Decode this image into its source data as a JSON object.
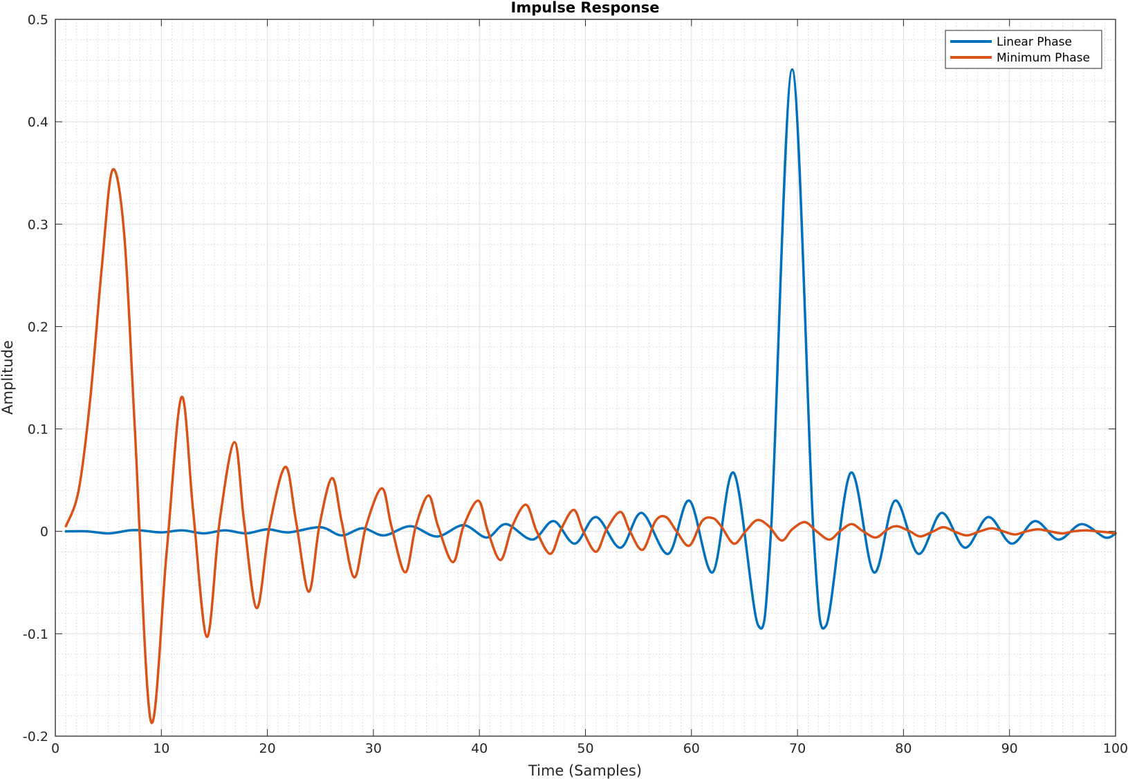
{
  "chart_data": {
    "type": "line",
    "title": "Impulse Response",
    "xlabel": "Time (Samples)",
    "ylabel": "Amplitude",
    "xlim": [
      0,
      100
    ],
    "ylim": [
      -0.2,
      0.5
    ],
    "xticks": [
      0,
      10,
      20,
      30,
      40,
      50,
      60,
      70,
      80,
      90,
      100
    ],
    "xtick_labels": [
      "0",
      "10",
      "20",
      "30",
      "40",
      "50",
      "60",
      "70",
      "80",
      "90",
      "100"
    ],
    "yticks": [
      -0.2,
      -0.1,
      0,
      0.1,
      0.2,
      0.3,
      0.4,
      0.5
    ],
    "ytick_labels": [
      "-0.2",
      "-0.1",
      "0",
      "0.1",
      "0.2",
      "0.3",
      "0.4",
      "0.5"
    ],
    "grid": true,
    "minor_grid": true,
    "legend_location": "top-right",
    "series": [
      {
        "name": "Linear Phase",
        "color": "#0072BD",
        "x": [
          1,
          3,
          5,
          7,
          8,
          10,
          12,
          14,
          16,
          18,
          20,
          22,
          25,
          27,
          29,
          31,
          33.5,
          36,
          38.5,
          40.7,
          42.5,
          45,
          47,
          49,
          51,
          53.3,
          55.3,
          57.8,
          59.8,
          62,
          64,
          66.3,
          67.5,
          69.5,
          71.5,
          72.7,
          75,
          77.2,
          79.2,
          81.4,
          83.6,
          85.8,
          88,
          90.2,
          92.4,
          94.6,
          96.8,
          99,
          100
        ],
        "y": [
          0,
          0,
          -0.002,
          0.001,
          0.001,
          -0.001,
          0.001,
          -0.002,
          0.001,
          -0.002,
          0.002,
          -0.001,
          0.004,
          -0.004,
          0.003,
          -0.004,
          0.005,
          -0.005,
          0.006,
          -0.006,
          0.007,
          -0.008,
          0.01,
          -0.012,
          0.014,
          -0.016,
          0.018,
          -0.022,
          0.03,
          -0.04,
          0.057,
          -0.092,
          0,
          0.451,
          0,
          -0.092,
          0.057,
          -0.04,
          0.03,
          -0.022,
          0.018,
          -0.016,
          0.014,
          -0.012,
          0.01,
          -0.008,
          0.007,
          -0.006,
          -0.002
        ]
      },
      {
        "name": "Minimum Phase",
        "color": "#D95319",
        "x": [
          1,
          2.2,
          3.3,
          4.4,
          5.4,
          6.5,
          7.5,
          9,
          10.5,
          11.9,
          13,
          14.3,
          15.5,
          16.9,
          17.8,
          19,
          20.2,
          21.7,
          22.7,
          23.9,
          24.9,
          26.1,
          27,
          28.2,
          29.3,
          30.8,
          31.7,
          33,
          34,
          35.2,
          36.1,
          37.5,
          38.5,
          39.9,
          40.8,
          42,
          43.1,
          44.4,
          45.4,
          46.7,
          47.7,
          48.9,
          49.8,
          51,
          52,
          53.3,
          54.2,
          55.4,
          56.6,
          57.6,
          58.6,
          59.8,
          61,
          62,
          62.8,
          64,
          65.1,
          66.2,
          67.3,
          68.5,
          69.5,
          70.7,
          71.8,
          73,
          74,
          75.1,
          76.2,
          77.4,
          78.5,
          79.4,
          80.6,
          81.6,
          82.8,
          83.8,
          85,
          86,
          87.2,
          88.3,
          89.4,
          90.5,
          91.6,
          92.7,
          93.8,
          95,
          96,
          97.2,
          98.2,
          99.3,
          100
        ],
        "y": [
          0.005,
          0.04,
          0.13,
          0.26,
          0.353,
          0.29,
          0.1,
          -0.185,
          -0.02,
          0.131,
          0.02,
          -0.103,
          0.01,
          0.087,
          0.01,
          -0.075,
          0.005,
          0.063,
          0.01,
          -0.059,
          0.005,
          0.052,
          0.01,
          -0.045,
          0.005,
          0.042,
          0.005,
          -0.04,
          0.005,
          0.035,
          0.005,
          -0.03,
          0.005,
          0.03,
          0,
          -0.028,
          0.005,
          0.026,
          0,
          -0.022,
          0.002,
          0.021,
          0,
          -0.02,
          0.002,
          0.019,
          0,
          -0.018,
          0.01,
          0.014,
          0,
          -0.014,
          0.01,
          0.013,
          0.005,
          -0.012,
          0,
          0.011,
          0.005,
          -0.009,
          0.002,
          0.009,
          0,
          -0.008,
          0,
          0.007,
          0,
          -0.006,
          0.002,
          0.005,
          0,
          -0.005,
          0,
          0.004,
          -0.001,
          -0.004,
          0,
          0.003,
          0,
          -0.003,
          0,
          0.002,
          0,
          -0.002,
          0,
          0.001,
          0,
          -0.001,
          -0.002
        ]
      }
    ]
  }
}
